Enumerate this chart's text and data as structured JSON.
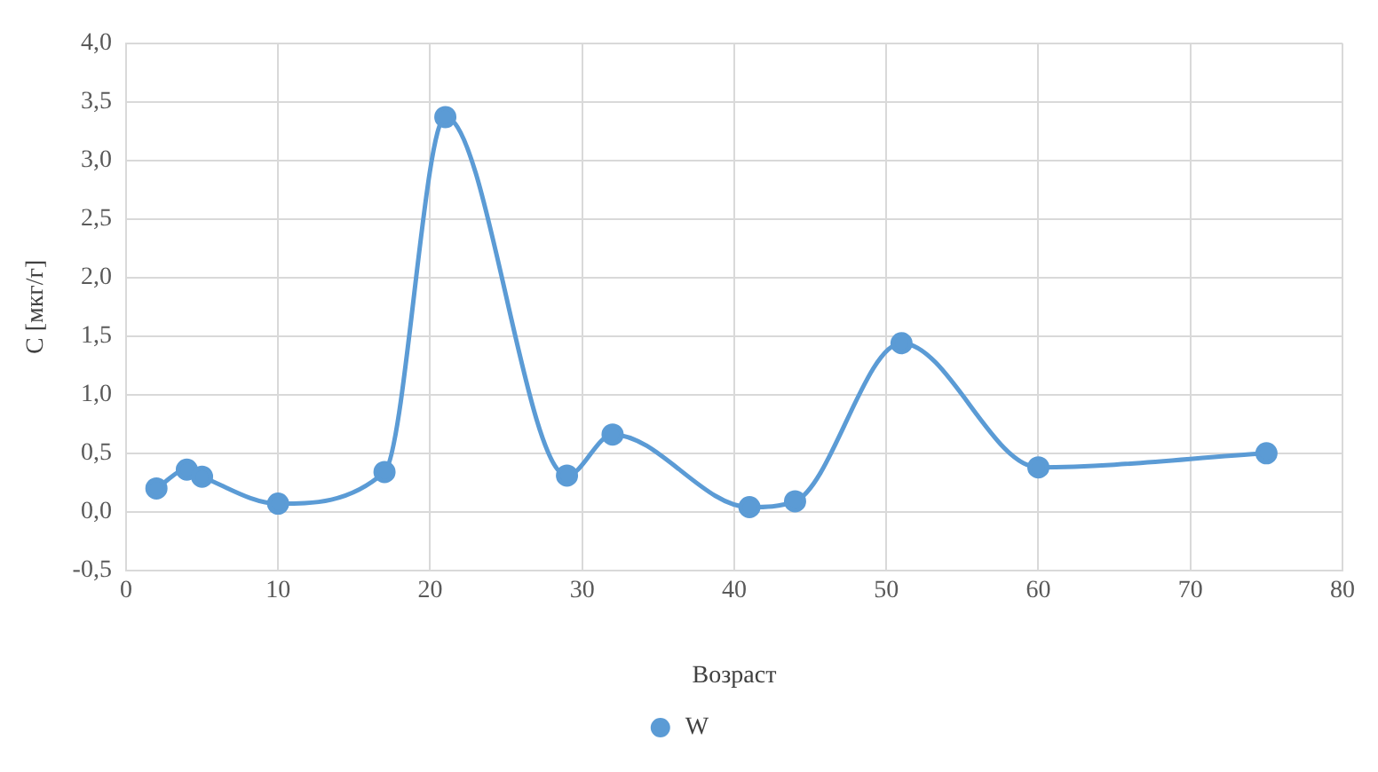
{
  "chart_data": {
    "type": "line",
    "xlabel": "Возраст",
    "ylabel": "C [мкг/г]",
    "x": [
      2,
      4,
      5,
      10,
      17,
      21,
      29,
      32,
      41,
      44,
      51,
      60,
      75
    ],
    "series": [
      {
        "name": "W",
        "color": "#5b9bd5",
        "values": [
          0.2,
          0.36,
          0.3,
          0.07,
          0.34,
          3.37,
          0.31,
          0.66,
          0.04,
          0.09,
          1.44,
          0.38,
          0.5
        ]
      }
    ],
    "xlim": [
      0,
      80
    ],
    "xticks": [
      0,
      10,
      20,
      30,
      40,
      50,
      60,
      70,
      80
    ],
    "ylim": [
      -0.5,
      4
    ],
    "yticks": [
      {
        "value": -0.5,
        "label": "-0,5"
      },
      {
        "value": 0,
        "label": "0,0"
      },
      {
        "value": 0.5,
        "label": "0,5"
      },
      {
        "value": 1,
        "label": "1,0"
      },
      {
        "value": 1.5,
        "label": "1,5"
      },
      {
        "value": 2,
        "label": "2,0"
      },
      {
        "value": 2.5,
        "label": "2,5"
      },
      {
        "value": 3,
        "label": "3,0"
      },
      {
        "value": 3.5,
        "label": "3,5"
      },
      {
        "value": 4,
        "label": "4,0"
      }
    ],
    "grid": true,
    "legend": "bottom",
    "marker": "circle",
    "line_style": "solid"
  }
}
